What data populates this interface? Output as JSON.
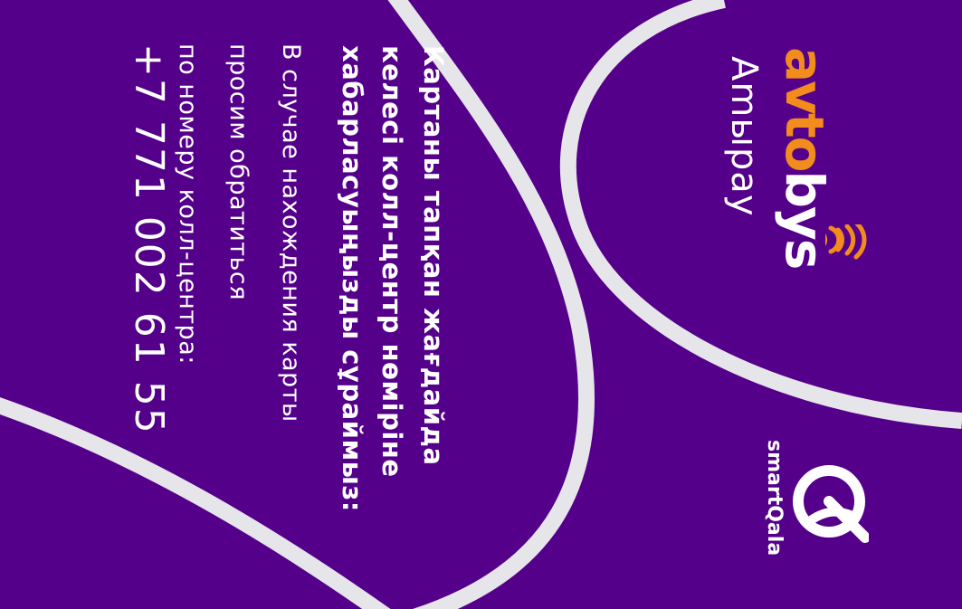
{
  "brand": {
    "logo_part_orange": "avto",
    "logo_part_white": "bys",
    "product_name": "Amыpay"
  },
  "message_kk": {
    "line1": "Картаны тапқан жағдайда",
    "line2": "келесі колл-центр нөміріне",
    "line3": "хабарласуыңызды сұраймыз:"
  },
  "message_ru": {
    "line1": "В случае нахождения карты",
    "line2": "просим обратиться",
    "line3": "по номеру колл-центра:"
  },
  "phone": "+7 771 002 61 55",
  "partner": {
    "name": "smartQala",
    "icon": "smartqala-logo-icon"
  },
  "colors": {
    "background": "#55008a",
    "accent": "#f28c1c",
    "curve": "#e6e6ea",
    "text": "#ffffff"
  }
}
